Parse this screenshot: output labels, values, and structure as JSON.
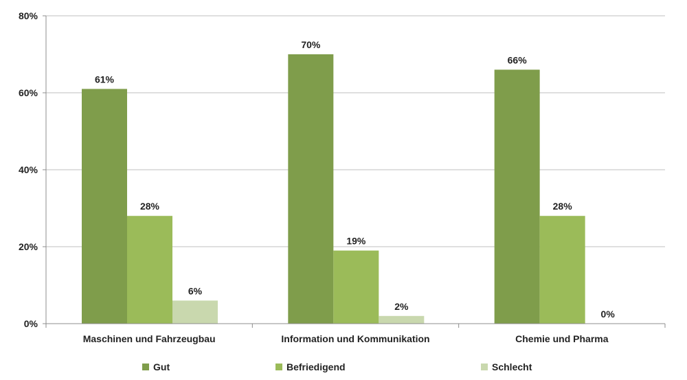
{
  "chart_data": {
    "type": "bar",
    "title": "",
    "xlabel": "",
    "ylabel": "",
    "categories": [
      "Maschinen und Fahrzeugbau",
      "Information und Kommunikation",
      "Chemie und Pharma"
    ],
    "series": [
      {
        "name": "Gut",
        "color": "#7f9d4b",
        "values": [
          61,
          70,
          66
        ],
        "labels": [
          "61%",
          "70%",
          "66%"
        ]
      },
      {
        "name": "Befriedigend",
        "color": "#9bbb59",
        "values": [
          28,
          19,
          28
        ],
        "labels": [
          "28%",
          "19%",
          "28%"
        ]
      },
      {
        "name": "Schlecht",
        "color": "#c9d8ae",
        "values": [
          6,
          2,
          0
        ],
        "labels": [
          "6%",
          "2%",
          "0%"
        ]
      }
    ],
    "ylim": [
      0,
      80
    ],
    "yticks": [
      0,
      20,
      40,
      60,
      80
    ],
    "ytick_labels": [
      "0%",
      "20%",
      "40%",
      "60%",
      "80%"
    ],
    "grid": true,
    "legend_position": "bottom"
  }
}
